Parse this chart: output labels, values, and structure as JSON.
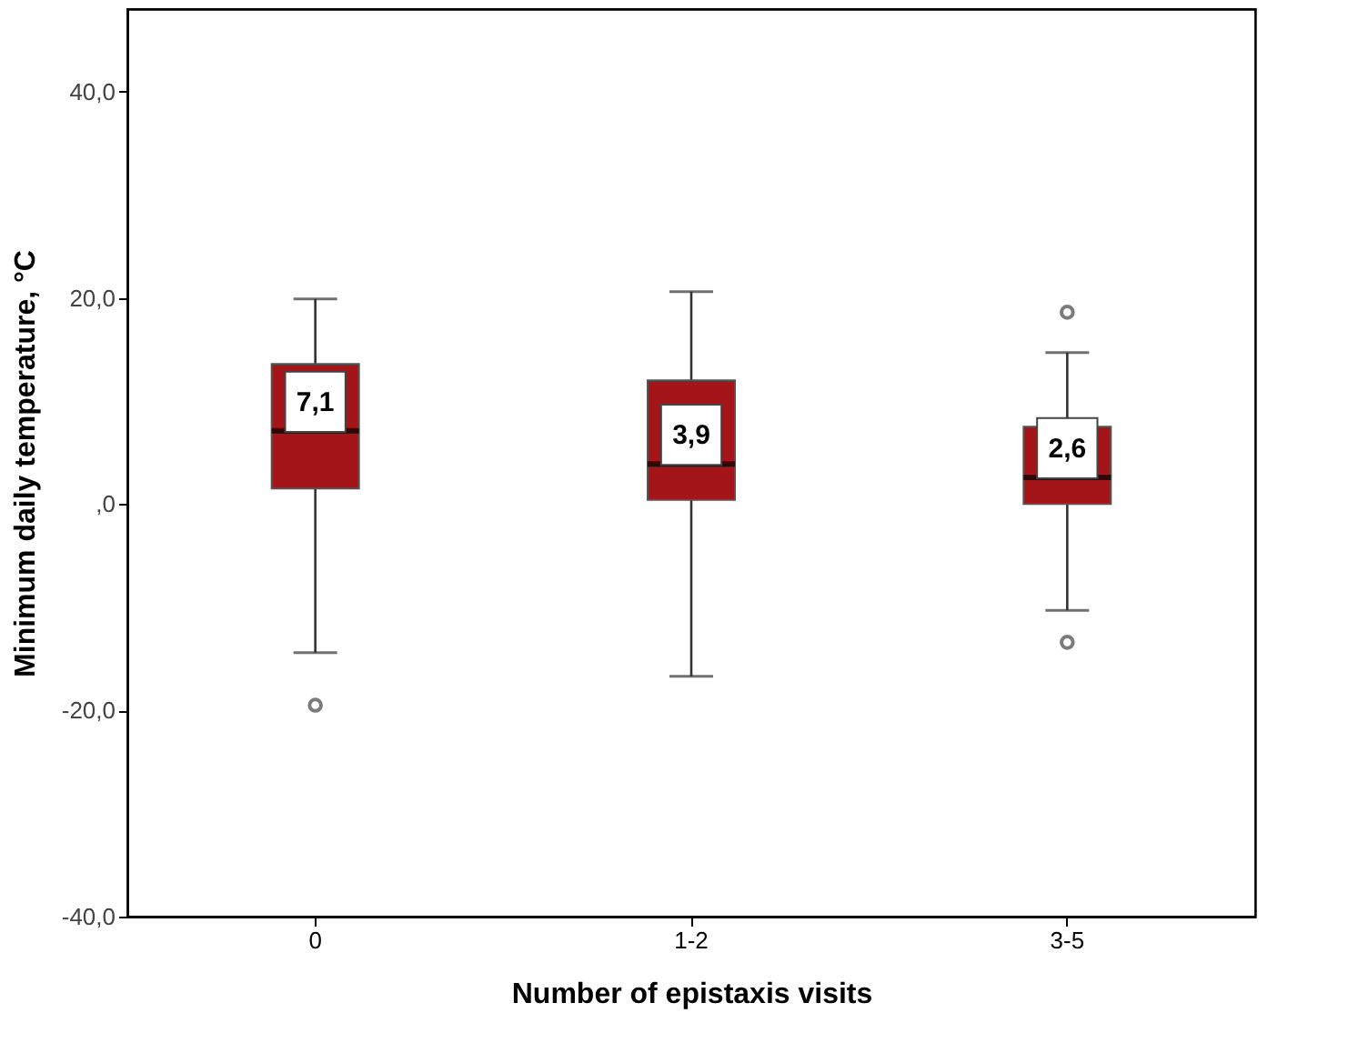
{
  "chart_data": {
    "type": "box",
    "xlabel": "Number of epistaxis visits",
    "ylabel": "Minimum daily temperature, °C",
    "categories": [
      "0",
      "1-2",
      "3-5"
    ],
    "boxes": [
      {
        "low": -14.4,
        "q1": 1.5,
        "median": 7.1,
        "q3": 13.6,
        "high": 19.9,
        "outliers": [
          -19.5
        ]
      },
      {
        "low": -16.7,
        "q1": 0.4,
        "median": 3.9,
        "q3": 12.0,
        "high": 20.6
      },
      {
        "low": -10.3,
        "q1": 0.0,
        "median": 2.6,
        "q3": 7.5,
        "high": 14.7,
        "outliers": [
          18.6,
          -13.4
        ]
      }
    ],
    "value_labels": [
      "7,1",
      "3,9",
      "2,6"
    ],
    "color": "#a31518",
    "ylim": [
      -40,
      48
    ],
    "yticks": [
      {
        "value": 40,
        "label": "40,0"
      },
      {
        "value": 20,
        "label": "20,0"
      },
      {
        "value": 0,
        "label": ",0"
      },
      {
        "value": -20,
        "label": "-20,0"
      },
      {
        "value": -40,
        "label": "-40,0"
      }
    ],
    "grid": false
  }
}
